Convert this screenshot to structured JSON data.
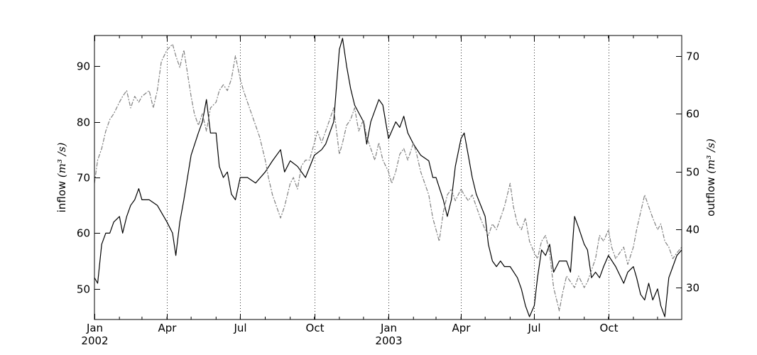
{
  "chart_data": {
    "type": "line",
    "title": "",
    "x_axis": {
      "type": "date",
      "range": [
        "2002-01-01",
        "2003-12-31"
      ],
      "ticks": [
        {
          "date": "2002-01-01",
          "label": "Jan",
          "sublabel": "2002"
        },
        {
          "date": "2002-04-01",
          "label": "Apr",
          "sublabel": ""
        },
        {
          "date": "2002-07-01",
          "label": "Jul",
          "sublabel": ""
        },
        {
          "date": "2002-10-01",
          "label": "Oct",
          "sublabel": ""
        },
        {
          "date": "2003-01-01",
          "label": "Jan",
          "sublabel": "2003"
        },
        {
          "date": "2003-04-01",
          "label": "Apr",
          "sublabel": ""
        },
        {
          "date": "2003-07-01",
          "label": "Jul",
          "sublabel": ""
        },
        {
          "date": "2003-10-01",
          "label": "Oct",
          "sublabel": ""
        }
      ],
      "grid": "vertical dotted at major ticks",
      "minor_ticks": "monthly"
    },
    "y_left": {
      "label_text": "inflow ",
      "label_math": "(m³ /s)",
      "range": [
        44.5,
        95.5
      ],
      "ticks": [
        50,
        60,
        70,
        80,
        90
      ],
      "tick_labels": [
        "50",
        "60",
        "70",
        "80",
        "90"
      ]
    },
    "y_right": {
      "label_text": "outflow ",
      "label_math": "(m³ /s)",
      "range": [
        24.5,
        73.5
      ],
      "ticks": [
        30,
        40,
        50,
        60,
        70
      ],
      "tick_labels": [
        "30",
        "40",
        "50",
        "60",
        "70"
      ]
    },
    "series": [
      {
        "id": "inflow",
        "axis": "left",
        "style": "solid",
        "color": "#000000",
        "points": [
          [
            "2002-01-01",
            52
          ],
          [
            "2002-01-05",
            51
          ],
          [
            "2002-01-10",
            58
          ],
          [
            "2002-01-15",
            60
          ],
          [
            "2002-01-20",
            60
          ],
          [
            "2002-01-25",
            62
          ],
          [
            "2002-02-01",
            63
          ],
          [
            "2002-02-05",
            60
          ],
          [
            "2002-02-10",
            63
          ],
          [
            "2002-02-15",
            65
          ],
          [
            "2002-02-20",
            66
          ],
          [
            "2002-02-25",
            68
          ],
          [
            "2002-03-01",
            66
          ],
          [
            "2002-03-10",
            66
          ],
          [
            "2002-03-20",
            65
          ],
          [
            "2002-04-01",
            62
          ],
          [
            "2002-04-08",
            60
          ],
          [
            "2002-04-12",
            56
          ],
          [
            "2002-04-17",
            62
          ],
          [
            "2002-04-22",
            66
          ],
          [
            "2002-05-01",
            74
          ],
          [
            "2002-05-10",
            78
          ],
          [
            "2002-05-15",
            80
          ],
          [
            "2002-05-20",
            84
          ],
          [
            "2002-05-25",
            78
          ],
          [
            "2002-06-01",
            78
          ],
          [
            "2002-06-05",
            72
          ],
          [
            "2002-06-10",
            70
          ],
          [
            "2002-06-15",
            71
          ],
          [
            "2002-06-20",
            67
          ],
          [
            "2002-06-25",
            66
          ],
          [
            "2002-07-01",
            70
          ],
          [
            "2002-07-10",
            70
          ],
          [
            "2002-07-20",
            69
          ],
          [
            "2002-08-01",
            71
          ],
          [
            "2002-08-10",
            73
          ],
          [
            "2002-08-20",
            75
          ],
          [
            "2002-08-25",
            71
          ],
          [
            "2002-09-01",
            73
          ],
          [
            "2002-09-10",
            72
          ],
          [
            "2002-09-20",
            70
          ],
          [
            "2002-10-01",
            74
          ],
          [
            "2002-10-10",
            75
          ],
          [
            "2002-10-15",
            76
          ],
          [
            "2002-10-25",
            80
          ],
          [
            "2002-11-01",
            93
          ],
          [
            "2002-11-05",
            95
          ],
          [
            "2002-11-10",
            90
          ],
          [
            "2002-11-15",
            86
          ],
          [
            "2002-11-20",
            83
          ],
          [
            "2002-12-01",
            80
          ],
          [
            "2002-12-05",
            76
          ],
          [
            "2002-12-10",
            80
          ],
          [
            "2002-12-20",
            84
          ],
          [
            "2002-12-25",
            83
          ],
          [
            "2003-01-01",
            77
          ],
          [
            "2003-01-10",
            80
          ],
          [
            "2003-01-15",
            79
          ],
          [
            "2003-01-20",
            81
          ],
          [
            "2003-01-25",
            78
          ],
          [
            "2003-02-01",
            76
          ],
          [
            "2003-02-10",
            74
          ],
          [
            "2003-02-20",
            73
          ],
          [
            "2003-02-25",
            70
          ],
          [
            "2003-03-01",
            70
          ],
          [
            "2003-03-10",
            66
          ],
          [
            "2003-03-15",
            63
          ],
          [
            "2003-03-20",
            66
          ],
          [
            "2003-03-25",
            72
          ],
          [
            "2003-04-01",
            77
          ],
          [
            "2003-04-05",
            78
          ],
          [
            "2003-04-10",
            74
          ],
          [
            "2003-04-15",
            70
          ],
          [
            "2003-04-20",
            67
          ],
          [
            "2003-05-01",
            63
          ],
          [
            "2003-05-05",
            58
          ],
          [
            "2003-05-10",
            55
          ],
          [
            "2003-05-15",
            54
          ],
          [
            "2003-05-20",
            55
          ],
          [
            "2003-05-25",
            54
          ],
          [
            "2003-06-01",
            54
          ],
          [
            "2003-06-10",
            52
          ],
          [
            "2003-06-15",
            50
          ],
          [
            "2003-06-20",
            47
          ],
          [
            "2003-06-25",
            45
          ],
          [
            "2003-07-01",
            47
          ],
          [
            "2003-07-05",
            52
          ],
          [
            "2003-07-10",
            57
          ],
          [
            "2003-07-15",
            56
          ],
          [
            "2003-07-20",
            58
          ],
          [
            "2003-07-25",
            53
          ],
          [
            "2003-08-01",
            55
          ],
          [
            "2003-08-10",
            55
          ],
          [
            "2003-08-15",
            53
          ],
          [
            "2003-08-20",
            63
          ],
          [
            "2003-08-25",
            61
          ],
          [
            "2003-09-01",
            58
          ],
          [
            "2003-09-05",
            57
          ],
          [
            "2003-09-10",
            52
          ],
          [
            "2003-09-15",
            53
          ],
          [
            "2003-09-20",
            52
          ],
          [
            "2003-09-25",
            54
          ],
          [
            "2003-10-01",
            56
          ],
          [
            "2003-10-10",
            54
          ],
          [
            "2003-10-20",
            51
          ],
          [
            "2003-10-25",
            53
          ],
          [
            "2003-11-01",
            54
          ],
          [
            "2003-11-05",
            52
          ],
          [
            "2003-11-10",
            49
          ],
          [
            "2003-11-15",
            48
          ],
          [
            "2003-11-20",
            51
          ],
          [
            "2003-11-25",
            48
          ],
          [
            "2003-12-01",
            50
          ],
          [
            "2003-12-05",
            47
          ],
          [
            "2003-12-10",
            45
          ],
          [
            "2003-12-15",
            52
          ],
          [
            "2003-12-20",
            54
          ],
          [
            "2003-12-25",
            56
          ],
          [
            "2003-12-31",
            57
          ]
        ]
      },
      {
        "id": "outflow",
        "axis": "right",
        "style": "dashed",
        "color": "#808080",
        "points": [
          [
            "2002-01-01",
            48
          ],
          [
            "2002-01-05",
            52
          ],
          [
            "2002-01-10",
            54
          ],
          [
            "2002-01-15",
            57
          ],
          [
            "2002-01-20",
            59
          ],
          [
            "2002-01-25",
            60
          ],
          [
            "2002-02-01",
            62
          ],
          [
            "2002-02-05",
            63
          ],
          [
            "2002-02-10",
            64
          ],
          [
            "2002-02-15",
            61
          ],
          [
            "2002-02-20",
            63
          ],
          [
            "2002-02-25",
            62
          ],
          [
            "2002-03-01",
            63
          ],
          [
            "2002-03-10",
            64
          ],
          [
            "2002-03-15",
            61
          ],
          [
            "2002-03-20",
            64
          ],
          [
            "2002-03-25",
            69
          ],
          [
            "2002-04-01",
            71
          ],
          [
            "2002-04-08",
            72
          ],
          [
            "2002-04-12",
            70
          ],
          [
            "2002-04-17",
            68
          ],
          [
            "2002-04-22",
            71
          ],
          [
            "2002-05-01",
            63
          ],
          [
            "2002-05-05",
            60
          ],
          [
            "2002-05-10",
            58
          ],
          [
            "2002-05-15",
            60
          ],
          [
            "2002-05-20",
            57
          ],
          [
            "2002-05-25",
            61
          ],
          [
            "2002-06-01",
            62
          ],
          [
            "2002-06-05",
            64
          ],
          [
            "2002-06-10",
            65
          ],
          [
            "2002-06-15",
            64
          ],
          [
            "2002-06-20",
            66
          ],
          [
            "2002-06-25",
            70
          ],
          [
            "2002-07-01",
            66
          ],
          [
            "2002-07-05",
            64
          ],
          [
            "2002-07-10",
            62
          ],
          [
            "2002-07-15",
            60
          ],
          [
            "2002-07-20",
            58
          ],
          [
            "2002-07-25",
            56
          ],
          [
            "2002-08-01",
            52
          ],
          [
            "2002-08-05",
            49
          ],
          [
            "2002-08-10",
            46
          ],
          [
            "2002-08-15",
            44
          ],
          [
            "2002-08-20",
            42
          ],
          [
            "2002-08-25",
            44
          ],
          [
            "2002-09-01",
            48
          ],
          [
            "2002-09-05",
            49
          ],
          [
            "2002-09-10",
            47
          ],
          [
            "2002-09-15",
            51
          ],
          [
            "2002-09-20",
            52
          ],
          [
            "2002-09-25",
            52
          ],
          [
            "2002-10-01",
            55
          ],
          [
            "2002-10-05",
            57
          ],
          [
            "2002-10-10",
            55
          ],
          [
            "2002-10-15",
            57
          ],
          [
            "2002-10-20",
            59
          ],
          [
            "2002-10-25",
            61
          ],
          [
            "2002-11-01",
            53
          ],
          [
            "2002-11-05",
            55
          ],
          [
            "2002-11-10",
            58
          ],
          [
            "2002-11-15",
            59
          ],
          [
            "2002-11-20",
            61
          ],
          [
            "2002-11-25",
            57
          ],
          [
            "2002-12-01",
            59
          ],
          [
            "2002-12-05",
            56
          ],
          [
            "2002-12-10",
            54
          ],
          [
            "2002-12-15",
            52
          ],
          [
            "2002-12-20",
            55
          ],
          [
            "2002-12-25",
            52
          ],
          [
            "2003-01-01",
            50
          ],
          [
            "2003-01-05",
            48
          ],
          [
            "2003-01-10",
            50
          ],
          [
            "2003-01-15",
            53
          ],
          [
            "2003-01-20",
            54
          ],
          [
            "2003-01-25",
            52
          ],
          [
            "2003-02-01",
            55
          ],
          [
            "2003-02-05",
            53
          ],
          [
            "2003-02-10",
            50
          ],
          [
            "2003-02-15",
            48
          ],
          [
            "2003-02-20",
            46
          ],
          [
            "2003-02-25",
            42
          ],
          [
            "2003-03-01",
            40
          ],
          [
            "2003-03-05",
            38
          ],
          [
            "2003-03-10",
            43
          ],
          [
            "2003-03-15",
            46
          ],
          [
            "2003-03-20",
            47
          ],
          [
            "2003-03-25",
            45
          ],
          [
            "2003-04-01",
            47
          ],
          [
            "2003-04-05",
            46
          ],
          [
            "2003-04-10",
            45
          ],
          [
            "2003-04-15",
            46
          ],
          [
            "2003-04-20",
            44
          ],
          [
            "2003-04-25",
            42
          ],
          [
            "2003-05-01",
            40
          ],
          [
            "2003-05-05",
            39
          ],
          [
            "2003-05-10",
            41
          ],
          [
            "2003-05-15",
            40
          ],
          [
            "2003-05-20",
            42
          ],
          [
            "2003-05-25",
            44
          ],
          [
            "2003-06-01",
            48
          ],
          [
            "2003-06-05",
            44
          ],
          [
            "2003-06-10",
            41
          ],
          [
            "2003-06-15",
            40
          ],
          [
            "2003-06-20",
            42
          ],
          [
            "2003-06-25",
            38
          ],
          [
            "2003-07-01",
            36
          ],
          [
            "2003-07-05",
            35
          ],
          [
            "2003-07-10",
            38
          ],
          [
            "2003-07-15",
            39
          ],
          [
            "2003-07-20",
            36
          ],
          [
            "2003-07-25",
            30
          ],
          [
            "2003-08-01",
            26
          ],
          [
            "2003-08-05",
            29
          ],
          [
            "2003-08-10",
            32
          ],
          [
            "2003-08-15",
            31
          ],
          [
            "2003-08-20",
            30
          ],
          [
            "2003-08-25",
            32
          ],
          [
            "2003-09-01",
            30
          ],
          [
            "2003-09-05",
            31
          ],
          [
            "2003-09-10",
            33
          ],
          [
            "2003-09-15",
            35
          ],
          [
            "2003-09-20",
            39
          ],
          [
            "2003-09-25",
            38
          ],
          [
            "2003-10-01",
            40
          ],
          [
            "2003-10-05",
            37
          ],
          [
            "2003-10-10",
            35
          ],
          [
            "2003-10-15",
            36
          ],
          [
            "2003-10-20",
            37
          ],
          [
            "2003-10-25",
            34
          ],
          [
            "2003-11-01",
            37
          ],
          [
            "2003-11-05",
            40
          ],
          [
            "2003-11-10",
            43
          ],
          [
            "2003-11-15",
            46
          ],
          [
            "2003-11-20",
            44
          ],
          [
            "2003-11-25",
            42
          ],
          [
            "2003-12-01",
            40
          ],
          [
            "2003-12-05",
            41
          ],
          [
            "2003-12-10",
            38
          ],
          [
            "2003-12-15",
            37
          ],
          [
            "2003-12-20",
            35
          ],
          [
            "2003-12-25",
            36
          ],
          [
            "2003-12-31",
            37
          ]
        ]
      }
    ]
  }
}
